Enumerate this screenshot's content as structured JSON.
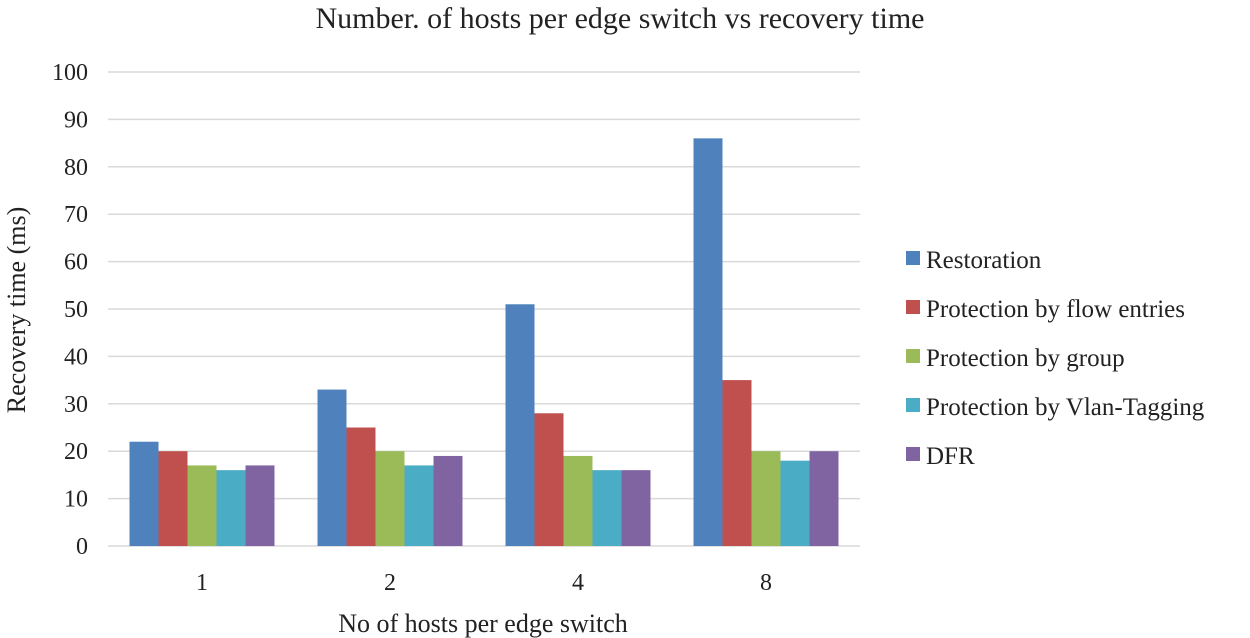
{
  "chart_data": {
    "type": "bar",
    "title": "Number. of hosts per edge switch vs recovery time",
    "xlabel": "No of hosts per edge switch",
    "ylabel": "Recovery time (ms)",
    "categories": [
      "1",
      "2",
      "4",
      "8"
    ],
    "ylim": [
      0,
      100
    ],
    "yticks": [
      0,
      10,
      20,
      30,
      40,
      50,
      60,
      70,
      80,
      90,
      100
    ],
    "grid": true,
    "legend_position": "right",
    "series": [
      {
        "name": "Restoration",
        "color": "#4F81BD",
        "values": [
          22,
          33,
          51,
          86
        ]
      },
      {
        "name": "Protection by flow entries",
        "color": "#C0504D",
        "values": [
          20,
          25,
          28,
          35
        ]
      },
      {
        "name": "Protection by group",
        "color": "#9BBB59",
        "values": [
          17,
          20,
          19,
          20
        ]
      },
      {
        "name": "Protection by Vlan-Tagging",
        "color": "#4BACC6",
        "values": [
          16,
          17,
          16,
          18
        ]
      },
      {
        "name": "DFR",
        "color": "#8064A2",
        "values": [
          17,
          19,
          16,
          20
        ]
      }
    ]
  }
}
